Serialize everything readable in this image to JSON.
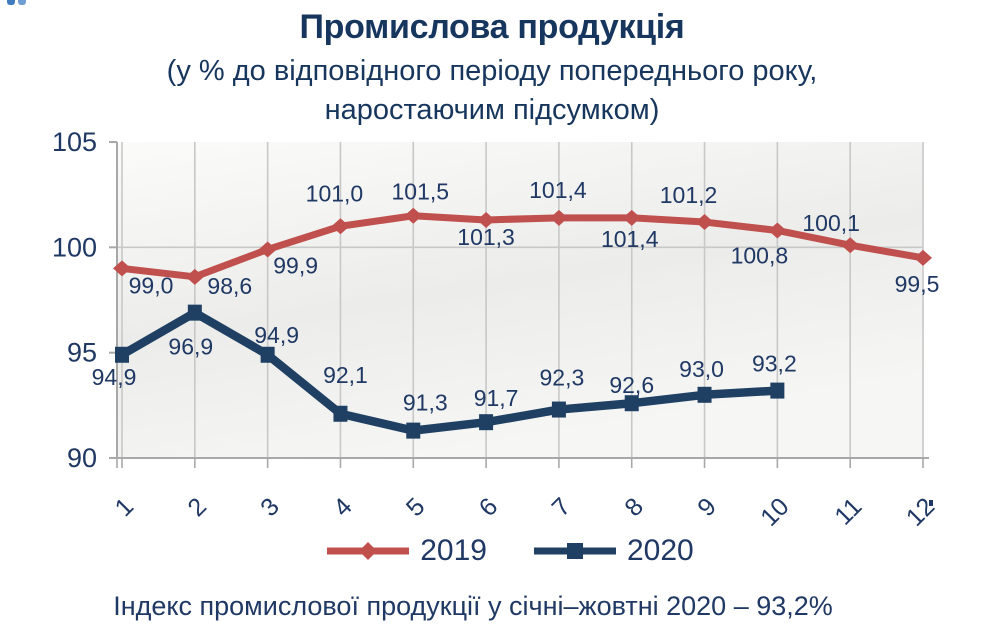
{
  "header": {
    "title": "Промислова продукція",
    "subtitle_line1": "(у % до відповідного періоду попереднього року,",
    "subtitle_line2": "наростаючим підсумком)"
  },
  "chart_data": {
    "type": "line",
    "title": "Промислова продукція",
    "subtitle": "(у % до відповідного періоду попереднього року, наростаючим підсумком)",
    "x": [
      1,
      2,
      3,
      4,
      5,
      6,
      7,
      8,
      9,
      10,
      11,
      12
    ],
    "xlabel": "",
    "ylabel": "",
    "ylim": [
      90,
      105
    ],
    "yticks": [
      90,
      95,
      100,
      105
    ],
    "ygrid": [
      100
    ],
    "grid": "vertical gridline at every month, horizontal gridline at 100",
    "legend_position": "bottom",
    "series": [
      {
        "name": "2019",
        "color": "#c0504d",
        "marker": "diamond",
        "values": [
          99.0,
          98.6,
          99.9,
          101.0,
          101.5,
          101.3,
          101.4,
          101.4,
          101.2,
          100.8,
          100.1,
          99.5
        ],
        "labels": [
          {
            "t": "99,0",
            "pos": "below",
            "dx": 29,
            "dy": -7
          },
          {
            "t": "98,6",
            "pos": "below",
            "dx": 35,
            "dy": -15
          },
          {
            "t": "99,9",
            "pos": "below",
            "dx": 28,
            "dy": -8
          },
          {
            "t": "101,0",
            "pos": "above",
            "dx": -6,
            "dy": -11
          },
          {
            "t": "101,5",
            "pos": "above",
            "dx": 7,
            "dy": -2
          },
          {
            "t": "101,3",
            "pos": "below",
            "dx": 0,
            "dy": -7
          },
          {
            "t": "101,4",
            "pos": "above",
            "dx": -1,
            "dy": -6
          },
          {
            "t": "101,4",
            "pos": "below",
            "dx": -2,
            "dy": -3
          },
          {
            "t": "101,2",
            "pos": "above",
            "dx": -16,
            "dy": -5
          },
          {
            "t": "100,8",
            "pos": "below",
            "dx": -18,
            "dy": 1
          },
          {
            "t": "100,1",
            "pos": "above",
            "dx": -19,
            "dy": 0
          },
          {
            "t": "99,5",
            "pos": "below",
            "dx": -6,
            "dy": 2
          }
        ]
      },
      {
        "name": "2020",
        "color": "#1f4063",
        "marker": "square",
        "values": [
          94.9,
          96.9,
          94.9,
          92.1,
          91.3,
          91.7,
          92.3,
          92.6,
          93.0,
          93.2
        ],
        "labels": [
          {
            "t": "94,9",
            "pos": "below",
            "dx": -8,
            "dy": -2
          },
          {
            "t": "96,9",
            "pos": "below",
            "dx": -4,
            "dy": 10
          },
          {
            "t": "94,9",
            "pos": "above",
            "dx": 9,
            "dy": 2
          },
          {
            "t": "92,1",
            "pos": "above",
            "dx": 5,
            "dy": -17
          },
          {
            "t": "91,3",
            "pos": "above",
            "dx": 12,
            "dy": -6
          },
          {
            "t": "91,7",
            "pos": "above",
            "dx": 10,
            "dy": -2
          },
          {
            "t": "92,3",
            "pos": "above",
            "dx": 3,
            "dy": -10
          },
          {
            "t": "92,6",
            "pos": "above",
            "dx": 0,
            "dy": 4
          },
          {
            "t": "93,0",
            "pos": "above",
            "dx": -3,
            "dy": -4
          },
          {
            "t": "93,2",
            "pos": "above",
            "dx": -3,
            "dy": -5
          }
        ]
      }
    ]
  },
  "legend": {
    "items": [
      {
        "label": "2019",
        "color": "#c0504d",
        "marker": "diamond"
      },
      {
        "label": "2020",
        "color": "#1f4063",
        "marker": "square"
      }
    ]
  },
  "caption": {
    "text": "Індекс промислової продукції у січні–жовтні 2020 – 93,2%"
  },
  "colors": {
    "title_navy": "#17365d",
    "text_navy": "#1f3864",
    "red": "#c0504d",
    "navy": "#1f4063",
    "grid": "#c8c8c8",
    "axis": "#a8a8a8"
  }
}
